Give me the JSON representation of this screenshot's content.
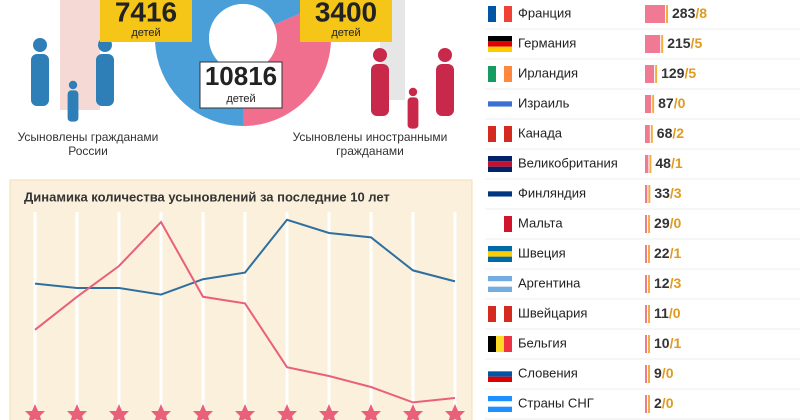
{
  "chart_data": [
    {
      "type": "pie",
      "values": [
        7416,
        3400
      ],
      "value_labels": [
        "7416",
        "3400"
      ],
      "colors": [
        "#4a9fd8",
        "#f06e8e"
      ],
      "unit": "детей",
      "total": 10816,
      "total_label": "10816",
      "captions": [
        "Усыновлены гражданами России",
        "Усыновлены иностранными гражданами"
      ]
    },
    {
      "type": "line",
      "title": "Динамика количества усыновлений за последние 10 лет",
      "categories": [
        null,
        null,
        null,
        null,
        null,
        null,
        null,
        null,
        null,
        null,
        null
      ],
      "series": [
        {
          "color": "#2f6f9f",
          "values": [
            62,
            60,
            60,
            57,
            64,
            67,
            91,
            85,
            83,
            68,
            63
          ]
        },
        {
          "color": "#e8607a",
          "values": [
            41,
            56,
            70,
            90,
            56,
            53,
            24,
            20,
            15,
            8,
            10
          ]
        }
      ],
      "ylim": [
        0,
        100
      ]
    }
  ],
  "countries": [
    {
      "name": "Франция",
      "value": 283,
      "value2": 8
    },
    {
      "name": "Германия",
      "value": 215,
      "value2": 5
    },
    {
      "name": "Ирландия",
      "value": 129,
      "value2": 5
    },
    {
      "name": "Израиль",
      "value": 87,
      "value2": 0
    },
    {
      "name": "Канада",
      "value": 68,
      "value2": 2
    },
    {
      "name": "Великобритания",
      "value": 48,
      "value2": 1
    },
    {
      "name": "Финляндия",
      "value": 33,
      "value2": 3
    },
    {
      "name": "Мальта",
      "value": 29,
      "value2": 0
    },
    {
      "name": "Швеция",
      "value": 22,
      "value2": 1
    },
    {
      "name": "Аргентина",
      "value": 12,
      "value2": 3
    },
    {
      "name": "Швейцария",
      "value": 11,
      "value2": 0
    },
    {
      "name": "Бельгия",
      "value": 10,
      "value2": 1
    },
    {
      "name": "Словения",
      "value": 9,
      "value2": 0
    },
    {
      "name": "Страны СНГ",
      "value": 2,
      "value2": 0
    }
  ]
}
